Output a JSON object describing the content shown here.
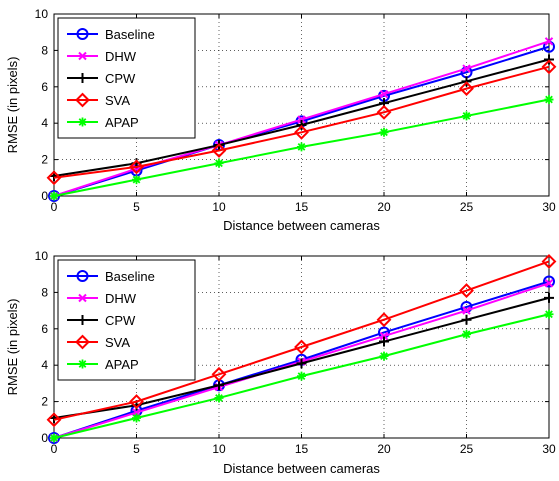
{
  "chart_data": [
    {
      "type": "line",
      "xlabel": "Distance between cameras",
      "ylabel": "RMSE (in pixels)",
      "xlim": [
        0,
        30
      ],
      "ylim": [
        0,
        10
      ],
      "xticks": [
        "0",
        "5",
        "10",
        "15",
        "20",
        "25",
        "30"
      ],
      "yticks": [
        "0",
        "2",
        "4",
        "6",
        "8",
        "10"
      ],
      "grid": true,
      "legend_position": "top-left",
      "x": [
        0,
        5,
        10,
        15,
        20,
        25,
        30
      ],
      "series": [
        {
          "name": "Baseline",
          "color": "#0000ff",
          "marker": "circle",
          "values": [
            0.0,
            1.4,
            2.8,
            4.1,
            5.5,
            6.8,
            8.2
          ]
        },
        {
          "name": "DHW",
          "color": "#ff00ff",
          "marker": "x",
          "values": [
            0.0,
            1.5,
            2.8,
            4.2,
            5.6,
            7.0,
            8.5
          ]
        },
        {
          "name": "CPW",
          "color": "#000000",
          "marker": "plus",
          "values": [
            1.1,
            1.8,
            2.8,
            3.9,
            5.1,
            6.3,
            7.5
          ]
        },
        {
          "name": "SVA",
          "color": "#ff0000",
          "marker": "diamond",
          "values": [
            1.0,
            1.6,
            2.5,
            3.5,
            4.6,
            5.9,
            7.1
          ]
        },
        {
          "name": "APAP",
          "color": "#00ff00",
          "marker": "star",
          "values": [
            0.0,
            0.9,
            1.8,
            2.7,
            3.5,
            4.4,
            5.3
          ]
        }
      ]
    },
    {
      "type": "line",
      "xlabel": "Distance between cameras",
      "ylabel": "RMSE (in pixels)",
      "xlim": [
        0,
        30
      ],
      "ylim": [
        0,
        10
      ],
      "xticks": [
        "0",
        "5",
        "10",
        "15",
        "20",
        "25",
        "30"
      ],
      "yticks": [
        "0",
        "2",
        "4",
        "6",
        "8",
        "10"
      ],
      "grid": true,
      "legend_position": "top-left",
      "x": [
        0,
        5,
        10,
        15,
        20,
        25,
        30
      ],
      "series": [
        {
          "name": "Baseline",
          "color": "#0000ff",
          "marker": "circle",
          "values": [
            0.0,
            1.5,
            2.9,
            4.3,
            5.8,
            7.2,
            8.6
          ]
        },
        {
          "name": "DHW",
          "color": "#ff00ff",
          "marker": "x",
          "values": [
            0.0,
            1.4,
            2.8,
            4.2,
            5.6,
            7.0,
            8.5
          ]
        },
        {
          "name": "CPW",
          "color": "#000000",
          "marker": "plus",
          "values": [
            1.1,
            1.8,
            2.9,
            4.1,
            5.3,
            6.5,
            7.7
          ]
        },
        {
          "name": "SVA",
          "color": "#ff0000",
          "marker": "diamond",
          "values": [
            1.0,
            2.0,
            3.5,
            5.0,
            6.5,
            8.1,
            9.7
          ]
        },
        {
          "name": "APAP",
          "color": "#00ff00",
          "marker": "star",
          "values": [
            0.0,
            1.1,
            2.2,
            3.4,
            4.5,
            5.7,
            6.8
          ]
        }
      ]
    }
  ]
}
